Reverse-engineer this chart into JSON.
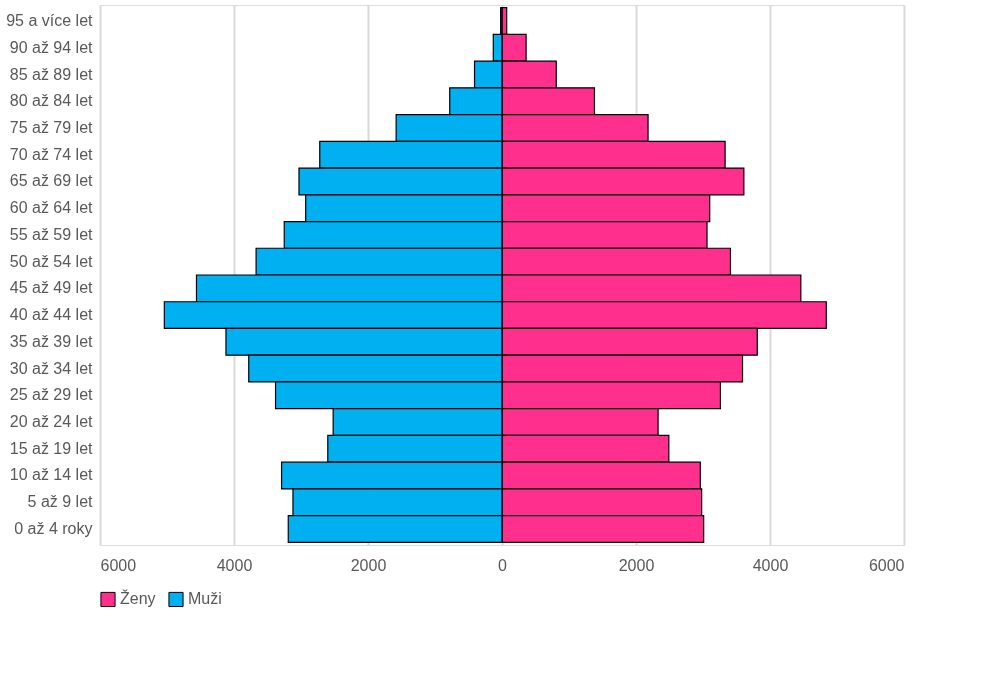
{
  "chart_data": {
    "type": "bar",
    "orientation": "horizontal",
    "stacked": true,
    "categories": [
      "95 a více let",
      "90 až 94 let",
      "85 až 89 let",
      "80 až 84 let",
      "75 až 79 let",
      "70 až 74 let",
      "65 až 69 let",
      "60 až 64 let",
      "55 až 59 let",
      "50 až 54 let",
      "45 až 49 let",
      "40 až 44 let",
      "35 až 39 let",
      "30 až 34 let",
      "25 až 29 let",
      "20 až 24 let",
      "15 až 19 let",
      "10 až 14 let",
      "5 až 9 let",
      "0 až 4 roky"
    ],
    "series": [
      {
        "name": "Ženy",
        "color": "#ff2f8e",
        "values": [
          70,
          360,
          810,
          1380,
          2180,
          3330,
          3610,
          3100,
          3060,
          3410,
          4460,
          4840,
          3810,
          3590,
          3260,
          2330,
          2490,
          2960,
          2980,
          3010
        ]
      },
      {
        "name": "Muži",
        "color": "#00b0f0",
        "values": [
          -20,
          -130,
          -410,
          -780,
          -1580,
          -2720,
          -3030,
          -2930,
          -3250,
          -3670,
          -4560,
          -5040,
          -4120,
          -3780,
          -3380,
          -2520,
          -2600,
          -3290,
          -3120,
          -3190
        ]
      }
    ],
    "xlim": [
      -6000,
      6000
    ],
    "xticks": [
      {
        "value": -6000,
        "label": "6000"
      },
      {
        "value": -4000,
        "label": "4000"
      },
      {
        "value": -2000,
        "label": "2000"
      },
      0,
      2000,
      4000,
      6000
    ],
    "grid": "x",
    "legend": "bottom"
  }
}
